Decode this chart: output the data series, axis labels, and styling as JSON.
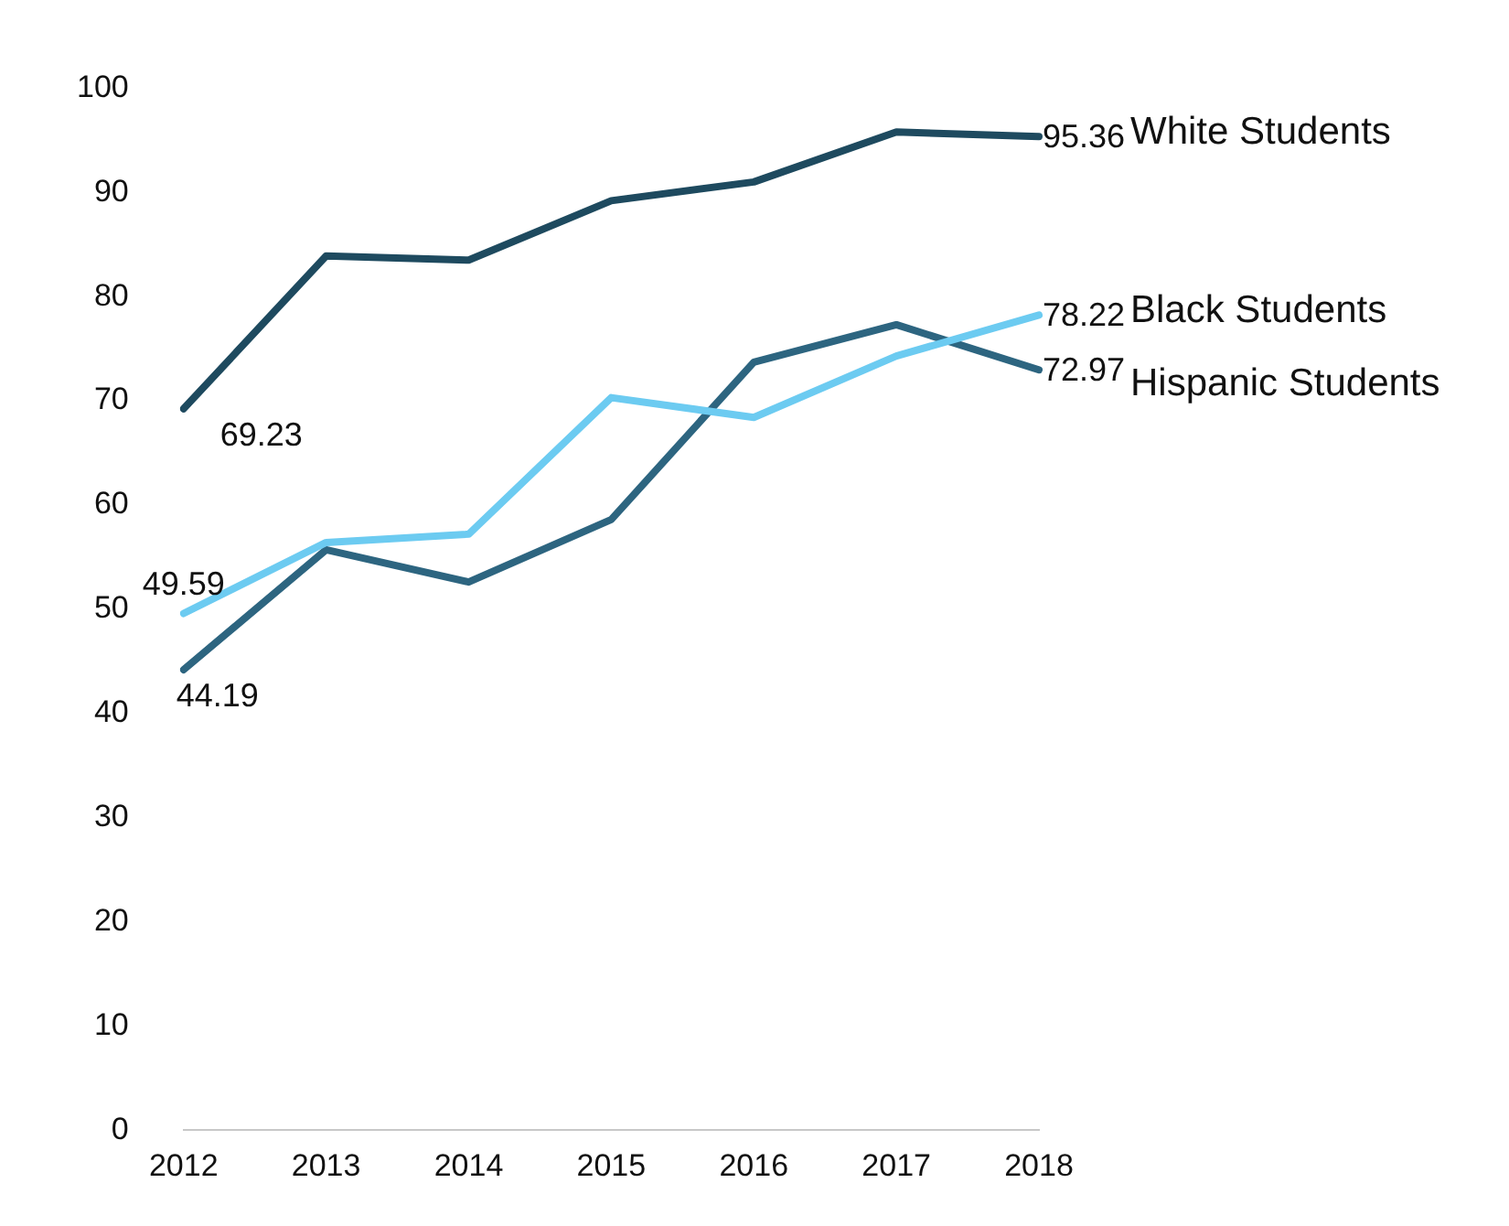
{
  "chart_data": {
    "type": "line",
    "categories": [
      "2012",
      "2013",
      "2014",
      "2015",
      "2016",
      "2017",
      "2018"
    ],
    "series": [
      {
        "name": "White Students",
        "color": "#1e4a5f",
        "values": [
          69.23,
          83.9,
          83.5,
          89.2,
          91.0,
          95.8,
          95.36
        ],
        "value_labels": [
          "69.23",
          null,
          null,
          null,
          null,
          null,
          "95.36"
        ]
      },
      {
        "name": "Black Students",
        "color": "#6ccbf1",
        "values": [
          49.59,
          56.4,
          57.2,
          70.3,
          68.4,
          74.3,
          78.22
        ],
        "value_labels": [
          "49.59",
          null,
          null,
          null,
          null,
          null,
          "78.22"
        ]
      },
      {
        "name": "Hispanic Students",
        "color": "#2d6580",
        "values": [
          44.19,
          55.7,
          52.6,
          58.6,
          73.7,
          77.3,
          72.97
        ],
        "value_labels": [
          "44.19",
          null,
          null,
          null,
          null,
          null,
          "72.97"
        ]
      }
    ],
    "ylim": [
      0,
      100
    ],
    "yticks": [
      0,
      10,
      20,
      30,
      40,
      50,
      60,
      70,
      80,
      90,
      100
    ],
    "grid": false,
    "legend": false,
    "marker": "none",
    "line_style": "solid"
  }
}
